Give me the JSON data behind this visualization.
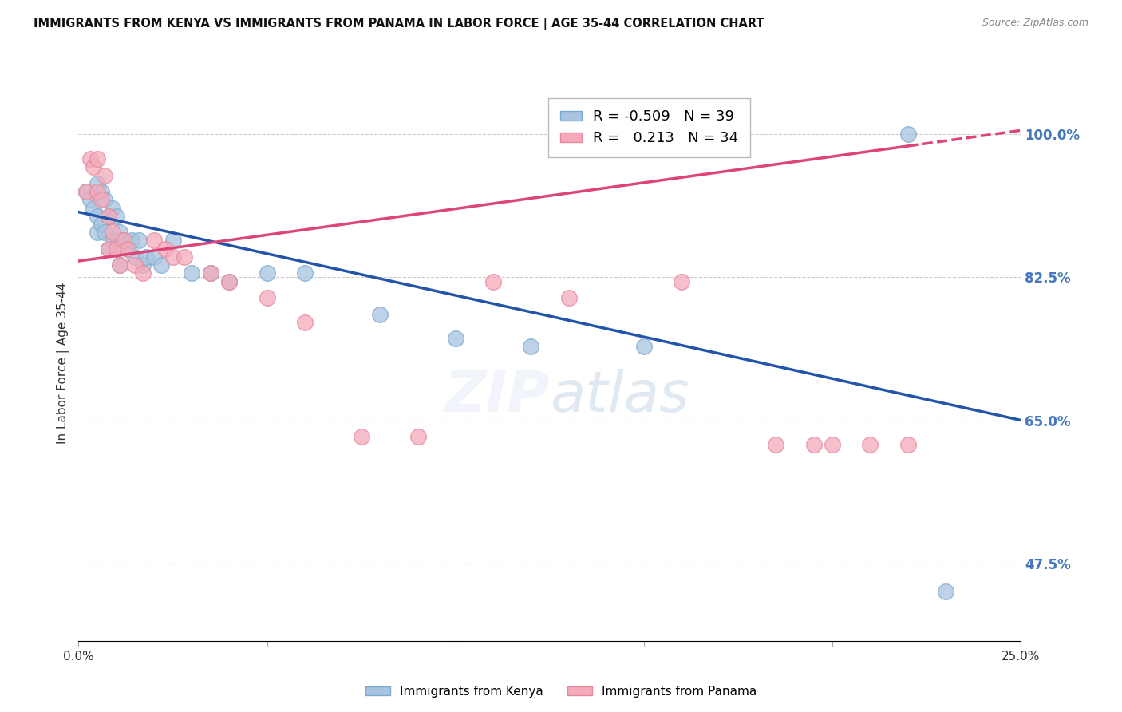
{
  "title": "IMMIGRANTS FROM KENYA VS IMMIGRANTS FROM PANAMA IN LABOR FORCE | AGE 35-44 CORRELATION CHART",
  "source": "Source: ZipAtlas.com",
  "ylabel": "In Labor Force | Age 35-44",
  "legend_blue_r": "-0.509",
  "legend_blue_n": "39",
  "legend_pink_r": "0.213",
  "legend_pink_n": "34",
  "legend_blue_label": "Immigrants from Kenya",
  "legend_pink_label": "Immigrants from Panama",
  "xlim": [
    0.0,
    0.25
  ],
  "ylim": [
    0.38,
    1.06
  ],
  "yticks": [
    0.475,
    0.65,
    0.825,
    1.0
  ],
  "ytick_labels": [
    "47.5%",
    "65.0%",
    "82.5%",
    "100.0%"
  ],
  "xticks": [
    0.0,
    0.05,
    0.1,
    0.15,
    0.2,
    0.25
  ],
  "xtick_labels": [
    "0.0%",
    "",
    "",
    "",
    "",
    "25.0%"
  ],
  "blue_color": "#A8C4E0",
  "pink_color": "#F4AABB",
  "blue_edge": "#7AAAD0",
  "pink_edge": "#E88899",
  "trend_blue": "#2255AA",
  "trend_pink": "#DD4477",
  "background": "#FFFFFF",
  "grid_color": "#CCCCCC",
  "right_label_color": "#4477BB",
  "kenya_x": [
    0.002,
    0.003,
    0.004,
    0.005,
    0.005,
    0.005,
    0.006,
    0.006,
    0.007,
    0.007,
    0.008,
    0.008,
    0.009,
    0.009,
    0.01,
    0.01,
    0.011,
    0.011,
    0.012,
    0.013,
    0.014,
    0.015,
    0.016,
    0.017,
    0.018,
    0.02,
    0.022,
    0.025,
    0.03,
    0.035,
    0.04,
    0.05,
    0.06,
    0.08,
    0.1,
    0.12,
    0.15,
    0.22,
    0.23
  ],
  "kenya_y": [
    0.93,
    0.92,
    0.91,
    0.94,
    0.9,
    0.88,
    0.93,
    0.89,
    0.92,
    0.88,
    0.9,
    0.86,
    0.91,
    0.87,
    0.9,
    0.86,
    0.88,
    0.84,
    0.87,
    0.86,
    0.87,
    0.85,
    0.87,
    0.84,
    0.85,
    0.85,
    0.84,
    0.87,
    0.83,
    0.83,
    0.82,
    0.83,
    0.83,
    0.78,
    0.75,
    0.74,
    0.74,
    1.0,
    0.44
  ],
  "panama_x": [
    0.002,
    0.003,
    0.004,
    0.005,
    0.005,
    0.006,
    0.007,
    0.008,
    0.008,
    0.009,
    0.01,
    0.011,
    0.012,
    0.013,
    0.015,
    0.017,
    0.02,
    0.023,
    0.025,
    0.028,
    0.035,
    0.04,
    0.05,
    0.06,
    0.075,
    0.09,
    0.11,
    0.13,
    0.16,
    0.185,
    0.195,
    0.2,
    0.21,
    0.22
  ],
  "panama_y": [
    0.93,
    0.97,
    0.96,
    0.97,
    0.93,
    0.92,
    0.95,
    0.9,
    0.86,
    0.88,
    0.86,
    0.84,
    0.87,
    0.86,
    0.84,
    0.83,
    0.87,
    0.86,
    0.85,
    0.85,
    0.83,
    0.82,
    0.8,
    0.77,
    0.63,
    0.63,
    0.82,
    0.8,
    0.82,
    0.62,
    0.62,
    0.62,
    0.62,
    0.62
  ]
}
